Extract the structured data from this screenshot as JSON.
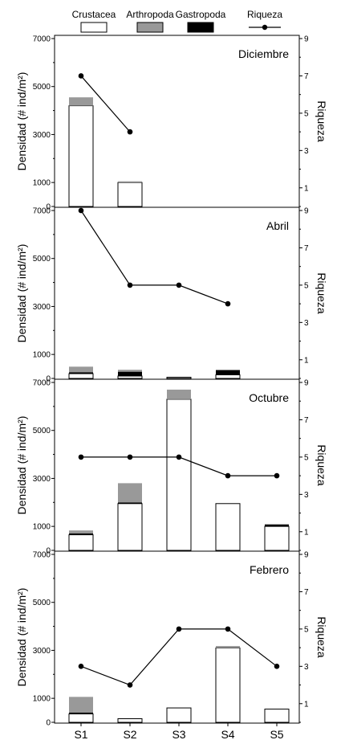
{
  "legend": {
    "items": [
      {
        "label": "Crustacea",
        "swatch": "white-box"
      },
      {
        "label": "Arthropoda",
        "swatch": "gray-box"
      },
      {
        "label": "Gastropoda",
        "swatch": "black-box"
      },
      {
        "label": "Riqueza",
        "swatch": "line-marker"
      }
    ]
  },
  "colors": {
    "crustacea": "#ffffff",
    "arthropoda": "#999999",
    "gastropoda": "#000000",
    "riqueza": "#000000",
    "axis": "#000000"
  },
  "chart_data": {
    "type": "bar",
    "stacked": true,
    "categories": [
      "S1",
      "S2",
      "S3",
      "S4",
      "S5"
    ],
    "ylabel": "Densidad (# ind/m²)",
    "y2label": "Riqueza",
    "ylim": [
      0,
      7000
    ],
    "yticks": [
      0,
      1000,
      3000,
      5000,
      7000
    ],
    "y2lim": [
      0,
      9
    ],
    "y2ticks": [
      1,
      3,
      5,
      7,
      9
    ],
    "bar_series": [
      "Crustacea",
      "Arthropoda",
      "Gastropoda"
    ],
    "line_series": "Riqueza",
    "grid": false,
    "legend_position": "top",
    "panels": [
      {
        "title": "Diciembre",
        "crustacea": [
          4200,
          1000,
          null,
          null,
          null
        ],
        "arthropoda": [
          350,
          50,
          null,
          null,
          null
        ],
        "gastropoda": [
          0,
          0,
          null,
          null,
          null
        ],
        "riqueza": [
          7,
          4,
          null,
          null,
          null
        ]
      },
      {
        "title": "Abril",
        "crustacea": [
          200,
          100,
          50,
          150,
          null
        ],
        "arthropoda": [
          230,
          80,
          0,
          0,
          null
        ],
        "gastropoda": [
          60,
          180,
          0,
          200,
          null
        ],
        "riqueza": [
          9,
          5,
          5,
          4,
          null
        ]
      },
      {
        "title": "Octubre",
        "crustacea": [
          650,
          1950,
          6300,
          1950,
          1000
        ],
        "arthropoda": [
          120,
          800,
          400,
          0,
          30
        ],
        "gastropoda": [
          60,
          50,
          0,
          0,
          70
        ],
        "riqueza": [
          5,
          5,
          5,
          4,
          4
        ]
      },
      {
        "title": "Febrero",
        "crustacea": [
          350,
          150,
          600,
          3100,
          550
        ],
        "arthropoda": [
          650,
          0,
          0,
          80,
          0
        ],
        "gastropoda": [
          60,
          0,
          0,
          0,
          0
        ],
        "riqueza": [
          3,
          2,
          5,
          5,
          3
        ]
      }
    ]
  }
}
